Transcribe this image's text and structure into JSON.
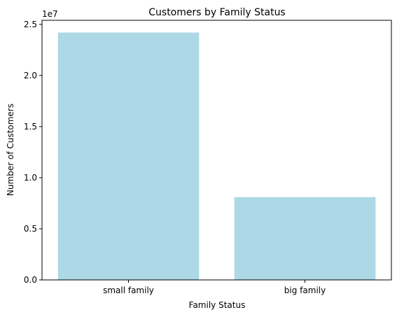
{
  "chart_data": {
    "type": "bar",
    "title": "Customers by Family Status",
    "xlabel": "Family Status",
    "ylabel": "Number of Customers",
    "categories": [
      "small family",
      "big family"
    ],
    "values": [
      24200000,
      8100000
    ],
    "ylim": [
      0,
      25400000
    ],
    "yticks": [
      0,
      5000000,
      10000000,
      15000000,
      20000000,
      25000000
    ],
    "ytick_labels": [
      "0.0",
      "0.5",
      "1.0",
      "1.5",
      "2.0",
      "2.5"
    ],
    "offset_label": "1e7",
    "bar_color": "#add8e6",
    "grid": false,
    "legend": "none"
  }
}
